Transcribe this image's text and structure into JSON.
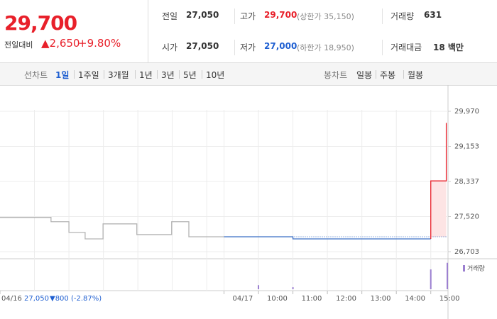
{
  "quote": {
    "price": "29,700",
    "change_label": "전일대비",
    "change": "▲2,650",
    "rate": "+9.80%",
    "stats": [
      {
        "label": "전일",
        "value": "27,050",
        "color": "#333333"
      },
      {
        "label": "고가",
        "value": "29,700",
        "note": "(상한가 35,150)",
        "color": "#e8202a"
      },
      {
        "label": "거래량",
        "value": "631",
        "color": "#333333"
      },
      {
        "label": "시가",
        "value": "27,050",
        "color": "#333333"
      },
      {
        "label": "저가",
        "value": "27,000",
        "note": "(하한가 18,950)",
        "color": "#1f5fd1"
      },
      {
        "label": "거래대금",
        "value": "18 백만",
        "color": "#333333"
      }
    ]
  },
  "tabs": {
    "line_label": "선차트",
    "line": [
      "1일",
      "1주일",
      "3개월",
      "1년",
      "3년",
      "5년",
      "10년"
    ],
    "active": 0,
    "candle_label": "봉차트",
    "candle": [
      "일봉",
      "주봉",
      "월봉"
    ]
  },
  "chart_data": {
    "type": "line",
    "grid": true,
    "xlim": [
      0,
      13
    ],
    "xticks": [
      {
        "value": 0,
        "label": "04/16"
      },
      {
        "value": 6.5,
        "label": "04/17"
      },
      {
        "value": 7.5,
        "label": "10:00"
      },
      {
        "value": 8.5,
        "label": "11:00"
      },
      {
        "value": 9.5,
        "label": "12:00"
      },
      {
        "value": 10.5,
        "label": "13:00"
      },
      {
        "value": 11.5,
        "label": "14:00"
      },
      {
        "value": 12.5,
        "label": "15:00"
      }
    ],
    "xgrid": [
      1,
      2,
      3,
      4,
      5,
      6
    ],
    "ylim": [
      26703,
      29970
    ],
    "yticks": [
      {
        "value": 29970,
        "label": "29,970"
      },
      {
        "value": 29153,
        "label": "29,153"
      },
      {
        "value": 28337,
        "label": "28,337"
      },
      {
        "value": 27520,
        "label": "27,520"
      },
      {
        "value": 26703,
        "label": "26,703"
      }
    ],
    "baseline": 27050,
    "series": [
      {
        "color": "#b4b4b4",
        "x": [
          0,
          1.48,
          1.48,
          2,
          2,
          2.47,
          2.47,
          2.99,
          2.99,
          3.97,
          3.97,
          4.98,
          4.98,
          5.48,
          5.48,
          6.5
        ],
        "values": [
          27500,
          27500,
          27400,
          27400,
          27150,
          27150,
          27000,
          27000,
          27350,
          27350,
          27100,
          27100,
          27400,
          27400,
          27050,
          27050
        ]
      },
      {
        "color": "#3b6fc5",
        "x": [
          6.5,
          8.5,
          8.5,
          12.5
        ],
        "values": [
          27050,
          27050,
          27000,
          27000
        ]
      },
      {
        "color": "#e8202a",
        "fill": "#fde4e4",
        "x": [
          12.5,
          12.5,
          12.95,
          12.95
        ],
        "values": [
          27000,
          28350,
          28350,
          29700
        ]
      }
    ],
    "volume": {
      "name": "거래량",
      "color": "#9b7fd0",
      "ylim": [
        0,
        300
      ],
      "x": [
        7.5,
        8.5,
        12.5,
        12.98
      ],
      "values": [
        40,
        20,
        195,
        260
      ]
    },
    "summary": {
      "date": "04/16",
      "close": "27,050",
      "change": "▼800",
      "rate": "(-2.87%)"
    }
  }
}
